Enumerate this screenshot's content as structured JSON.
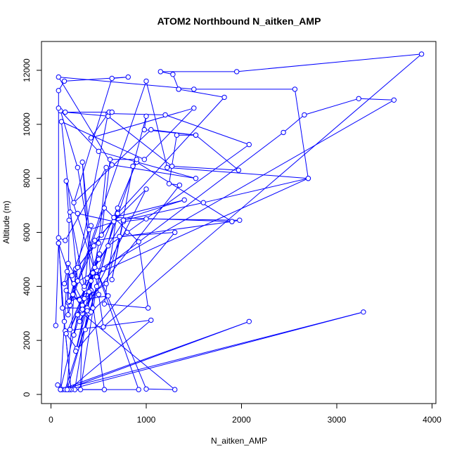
{
  "chart_data": {
    "type": "scatter",
    "title": "ATOM2 Northbound N_aitken_AMP",
    "xlabel": "N_aitken_AMP",
    "ylabel": "Altitude (m)",
    "xlim": [
      0,
      4000
    ],
    "ylim": [
      0,
      12500
    ],
    "xticks": [
      0,
      1000,
      2000,
      3000,
      4000
    ],
    "yticks": [
      0,
      2000,
      4000,
      6000,
      8000,
      10000,
      12000
    ],
    "grid": false,
    "legend": "none",
    "line_color": "#0000ff",
    "marker": "open-circle",
    "series": [
      {
        "points": [
          [
            70,
            350
          ],
          [
            120,
            180
          ],
          [
            560,
            180
          ],
          [
            420,
            3850
          ],
          [
            250,
            180
          ],
          [
            920,
            180
          ],
          [
            480,
            4600
          ],
          [
            1000,
            200
          ],
          [
            1300,
            180
          ],
          [
            330,
            3000
          ],
          [
            80,
            5600
          ],
          [
            140,
            2700
          ],
          [
            210,
            180
          ],
          [
            150,
            2350
          ],
          [
            1050,
            2750
          ],
          [
            190,
            180
          ],
          [
            3280,
            3050
          ],
          [
            100,
            180
          ],
          [
            2080,
            2700
          ],
          [
            150,
            180
          ],
          [
            400,
            3000
          ],
          [
            170,
            4550
          ],
          [
            180,
            2950
          ],
          [
            230,
            3700
          ],
          [
            330,
            3300
          ],
          [
            310,
            180
          ],
          [
            480,
            4000
          ],
          [
            170,
            180
          ],
          [
            260,
            4650
          ],
          [
            140,
            4100
          ],
          [
            180,
            4850
          ],
          [
            350,
            3900
          ],
          [
            100,
            180
          ],
          [
            160,
            3850
          ],
          [
            420,
            3050
          ],
          [
            600,
            3650
          ],
          [
            300,
            3500
          ],
          [
            500,
            5000
          ],
          [
            160,
            2250
          ],
          [
            270,
            1700
          ],
          [
            380,
            3200
          ],
          [
            440,
            4500
          ],
          [
            240,
            2200
          ],
          [
            280,
            2950
          ],
          [
            320,
            3100
          ],
          [
            510,
            5200
          ],
          [
            200,
            2400
          ],
          [
            350,
            3550
          ],
          [
            580,
            4100
          ],
          [
            720,
            5850
          ],
          [
            1300,
            6000
          ],
          [
            260,
            1600
          ],
          [
            460,
            4700
          ],
          [
            600,
            5500
          ],
          [
            800,
            6000
          ],
          [
            2080,
            9250
          ],
          [
            1200,
            10350
          ],
          [
            600,
            10400
          ],
          [
            200,
            3300
          ],
          [
            560,
            6900
          ],
          [
            920,
            5650
          ],
          [
            1020,
            3200
          ],
          [
            560,
            3350
          ],
          [
            700,
            6900
          ],
          [
            360,
            2400
          ],
          [
            660,
            6400
          ],
          [
            280,
            6700
          ],
          [
            200,
            6750
          ],
          [
            350,
            4000
          ],
          [
            900,
            8600
          ],
          [
            1900,
            6400
          ],
          [
            460,
            5700
          ],
          [
            1000,
            7600
          ],
          [
            300,
            2700
          ],
          [
            380,
            3100
          ],
          [
            500,
            5600
          ],
          [
            580,
            8400
          ],
          [
            150,
            5700
          ],
          [
            80,
            5800
          ],
          [
            120,
            3200
          ],
          [
            440,
            3200
          ],
          [
            330,
            8600
          ],
          [
            400,
            6100
          ],
          [
            1400,
            7200
          ],
          [
            660,
            6550
          ],
          [
            1900,
            6400
          ],
          [
            1980,
            6450
          ],
          [
            1000,
            6500
          ],
          [
            760,
            6400
          ],
          [
            380,
            4300
          ],
          [
            2700,
            8000
          ],
          [
            1600,
            7100
          ],
          [
            760,
            6450
          ],
          [
            640,
            4250
          ],
          [
            860,
            8450
          ],
          [
            1000,
            10300
          ],
          [
            980,
            9800
          ],
          [
            1520,
            9600
          ],
          [
            1320,
            9600
          ],
          [
            1240,
            7800
          ],
          [
            1350,
            7750
          ],
          [
            330,
            3150
          ],
          [
            420,
            6250
          ],
          [
            220,
            4400
          ],
          [
            530,
            5900
          ],
          [
            620,
            8700
          ],
          [
            900,
            8700
          ],
          [
            480,
            4350
          ],
          [
            160,
            7900
          ],
          [
            190,
            6450
          ],
          [
            180,
            3400
          ],
          [
            400,
            3800
          ],
          [
            420,
            4200
          ],
          [
            550,
            4650
          ],
          [
            2440,
            9700
          ],
          [
            2660,
            10350
          ],
          [
            3230,
            10950
          ],
          [
            3600,
            10900
          ],
          [
            240,
            4100
          ],
          [
            190,
            3450
          ],
          [
            450,
            5500
          ],
          [
            280,
            4700
          ],
          [
            700,
            6700
          ],
          [
            1820,
            11000
          ],
          [
            1340,
            11300
          ],
          [
            1340,
            11300
          ],
          [
            1280,
            11850
          ],
          [
            1150,
            11950
          ],
          [
            1950,
            11950
          ],
          [
            3890,
            12600
          ],
          [
            550,
            2500
          ],
          [
            500,
            3700
          ],
          [
            280,
            8400
          ],
          [
            100,
            10500
          ],
          [
            500,
            9000
          ],
          [
            1520,
            8000
          ],
          [
            640,
            8500
          ],
          [
            80,
            11750
          ],
          [
            1500,
            11300
          ],
          [
            2560,
            11300
          ],
          [
            2700,
            8000
          ],
          [
            1220,
            8400
          ],
          [
            1000,
            11600
          ],
          [
            280,
            4200
          ],
          [
            110,
            10100
          ],
          [
            980,
            8700
          ],
          [
            1500,
            10600
          ],
          [
            420,
            9500
          ],
          [
            610,
            10450
          ],
          [
            640,
            10450
          ],
          [
            150,
            10450
          ],
          [
            600,
            10300
          ],
          [
            1270,
            8450
          ],
          [
            1970,
            8300
          ],
          [
            1520,
            9600
          ],
          [
            1050,
            9800
          ],
          [
            240,
            7100
          ],
          [
            640,
            11700
          ],
          [
            810,
            11750
          ],
          [
            140,
            11600
          ],
          [
            80,
            11250
          ],
          [
            80,
            10600
          ],
          [
            80,
            5600
          ],
          [
            50,
            2550
          ]
        ]
      }
    ]
  }
}
